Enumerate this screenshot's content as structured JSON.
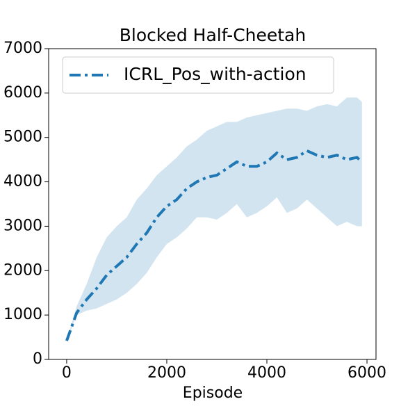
{
  "chart_data": {
    "type": "line",
    "title": "Blocked Half-Cheetah",
    "xlabel": "Episode",
    "x": [
      0,
      200,
      400,
      600,
      800,
      1000,
      1200,
      1400,
      1600,
      1800,
      2000,
      2200,
      2400,
      2600,
      2800,
      3000,
      3200,
      3400,
      3600,
      3800,
      4000,
      4200,
      4400,
      4600,
      4800,
      5000,
      5200,
      5400,
      5600,
      5800,
      5900
    ],
    "series": [
      {
        "name": "ICRL_Pos_with-action",
        "color": "#1f77b4",
        "values": [
          420,
          1050,
          1350,
          1600,
          1900,
          2100,
          2300,
          2600,
          2850,
          3200,
          3450,
          3600,
          3850,
          4000,
          4100,
          4150,
          4300,
          4450,
          4350,
          4350,
          4450,
          4650,
          4500,
          4550,
          4700,
          4600,
          4550,
          4600,
          4500,
          4550,
          4450
        ],
        "upper": [
          420,
          1200,
          1700,
          2300,
          2750,
          3000,
          3200,
          3600,
          3850,
          4150,
          4350,
          4550,
          4800,
          4950,
          5150,
          5250,
          5350,
          5350,
          5450,
          5500,
          5550,
          5600,
          5650,
          5650,
          5600,
          5700,
          5750,
          5700,
          5900,
          5900,
          5800
        ],
        "lower": [
          420,
          1000,
          1100,
          1150,
          1250,
          1350,
          1500,
          1700,
          1950,
          2300,
          2600,
          2750,
          2950,
          3200,
          3200,
          3150,
          3300,
          3500,
          3200,
          3300,
          3450,
          3650,
          3300,
          3400,
          3600,
          3400,
          3200,
          3000,
          3100,
          3000,
          3000
        ]
      }
    ],
    "xlim": [
      -360,
      6180
    ],
    "ylim": [
      0,
      7000
    ],
    "xticks": [
      0,
      2000,
      4000,
      6000
    ],
    "yticks": [
      0,
      1000,
      2000,
      3000,
      4000,
      5000,
      6000,
      7000
    ],
    "legend": "upper left"
  }
}
